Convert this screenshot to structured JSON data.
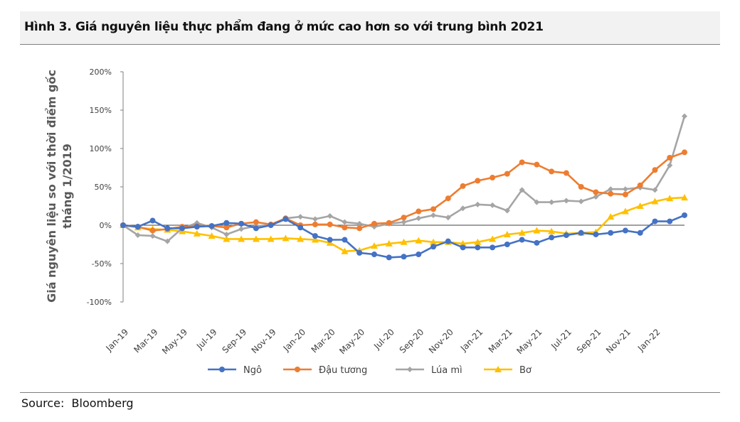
{
  "title": "Hình 3. Giá nguyên liệu thực phẩm đang ở mức cao hơn so với trung bình 2021",
  "source": "Source:  Bloomberg",
  "chart_data": {
    "type": "line",
    "ylabel_lines": [
      "Giá nguyên liệu so với thời điểm gốc",
      "tháng 1/2019"
    ],
    "ylim": [
      -100,
      200
    ],
    "yticks": [
      -100,
      -50,
      0,
      50,
      100,
      150,
      200
    ],
    "ytick_labels": [
      "-100%",
      "-50%",
      "0%",
      "50%",
      "100%",
      "150%",
      "200%"
    ],
    "xtick_labels": [
      "Jan-19",
      "Mar-19",
      "May-19",
      "Jul-19",
      "Sep-19",
      "Nov-19",
      "Jan-20",
      "Mar-20",
      "May-20",
      "Jul-20",
      "Sep-20",
      "Nov-20",
      "Jan-21",
      "Mar-21",
      "May-21",
      "Jul-21",
      "Sep-21",
      "Nov-21",
      "Jan-22"
    ],
    "x": [
      "Jan-19",
      "Feb-19",
      "Mar-19",
      "Apr-19",
      "May-19",
      "Jun-19",
      "Jul-19",
      "Aug-19",
      "Sep-19",
      "Oct-19",
      "Nov-19",
      "Dec-19",
      "Jan-20",
      "Feb-20",
      "Mar-20",
      "Apr-20",
      "May-20",
      "Jun-20",
      "Jul-20",
      "Aug-20",
      "Sep-20",
      "Oct-20",
      "Nov-20",
      "Dec-20",
      "Jan-21",
      "Feb-21",
      "Mar-21",
      "Apr-21",
      "May-21",
      "Jun-21",
      "Jul-21",
      "Aug-21",
      "Sep-21",
      "Oct-21",
      "Nov-21",
      "Dec-21",
      "Jan-22",
      "Feb-22",
      "Mar-22"
    ],
    "legend_position": "bottom",
    "series": [
      {
        "name": "Ngô",
        "color": "#4472c4",
        "marker": "circle",
        "values": [
          0,
          -2,
          6,
          -4,
          -4,
          -2,
          -1,
          3,
          2,
          -4,
          0,
          8,
          -3,
          -14,
          -19,
          -19,
          -36,
          -38,
          -42,
          -41,
          -38,
          -28,
          -21,
          -29,
          -29,
          -29,
          -25,
          -19,
          -23,
          -16,
          -13,
          -10,
          -12,
          -10,
          -7,
          -10,
          5,
          5,
          13
        ]
      },
      {
        "name": "Đậu tương",
        "color": "#ed7d31",
        "marker": "circle",
        "values": [
          0,
          -2,
          -7,
          -5,
          -2,
          -1,
          -1,
          -3,
          2,
          4,
          1,
          9,
          0,
          1,
          1,
          -3,
          -4,
          2,
          3,
          10,
          18,
          21,
          35,
          51,
          58,
          62,
          67,
          82,
          79,
          70,
          68,
          50,
          43,
          41,
          40,
          52,
          72,
          88,
          95
        ]
      },
      {
        "name": "Lúa mì",
        "color": "#a5a5a5",
        "marker": "diamond",
        "values": [
          0,
          -13,
          -14,
          -21,
          -4,
          3,
          -3,
          -12,
          -5,
          -1,
          0,
          9,
          11,
          8,
          12,
          4,
          2,
          -2,
          2,
          4,
          9,
          13,
          10,
          22,
          27,
          26,
          19,
          46,
          30,
          30,
          32,
          31,
          37,
          47,
          47,
          49,
          46,
          78,
          142
        ]
      },
      {
        "name": "Bơ",
        "color": "#ffc000",
        "marker": "triangle",
        "values": [
          0,
          -3,
          -5,
          -6,
          -8,
          -11,
          -14,
          -18,
          -18,
          -18,
          -18,
          -17,
          -18,
          -19,
          -23,
          -34,
          -33,
          -27,
          -24,
          -22,
          -20,
          -22,
          -22,
          -24,
          -22,
          -18,
          -12,
          -10,
          -7,
          -8,
          -11,
          -10,
          -9,
          11,
          18,
          25,
          31,
          35,
          36
        ]
      }
    ]
  }
}
